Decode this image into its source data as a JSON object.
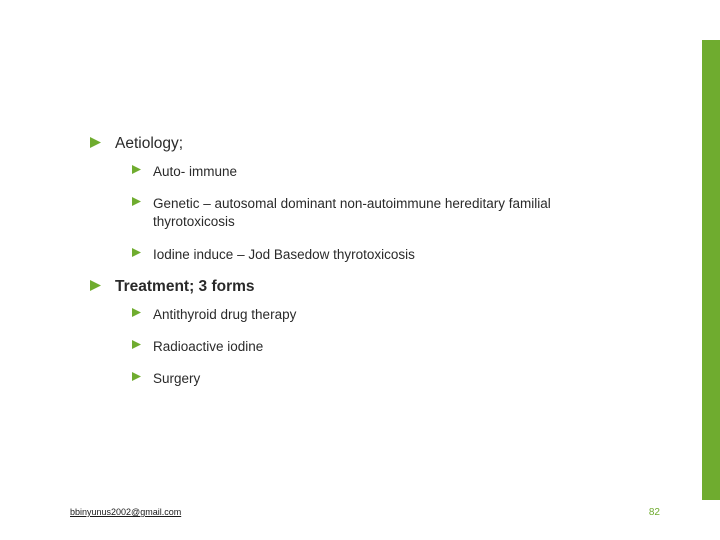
{
  "colors": {
    "accent": "#6fac2f",
    "text": "#2a2a2a",
    "page_num": "#6fac2f",
    "background": "#ffffff"
  },
  "bullet": {
    "lvl1_size": 11,
    "lvl2_size": 9,
    "fill": "#6fac2f"
  },
  "sections": [
    {
      "title": "Aetiology;",
      "bold": false,
      "items": [
        "Auto- immune",
        "Genetic – autosomal dominant non-autoimmune hereditary familial thyrotoxicosis",
        "Iodine induce – Jod Basedow thyrotoxicosis"
      ]
    },
    {
      "title": "Treatment; 3 forms",
      "bold": true,
      "items": [
        "Antithyroid drug therapy",
        "Radioactive iodine",
        "Surgery"
      ]
    }
  ],
  "footer": {
    "email": "bbinyunus2002@gmail.com",
    "page": "82"
  }
}
